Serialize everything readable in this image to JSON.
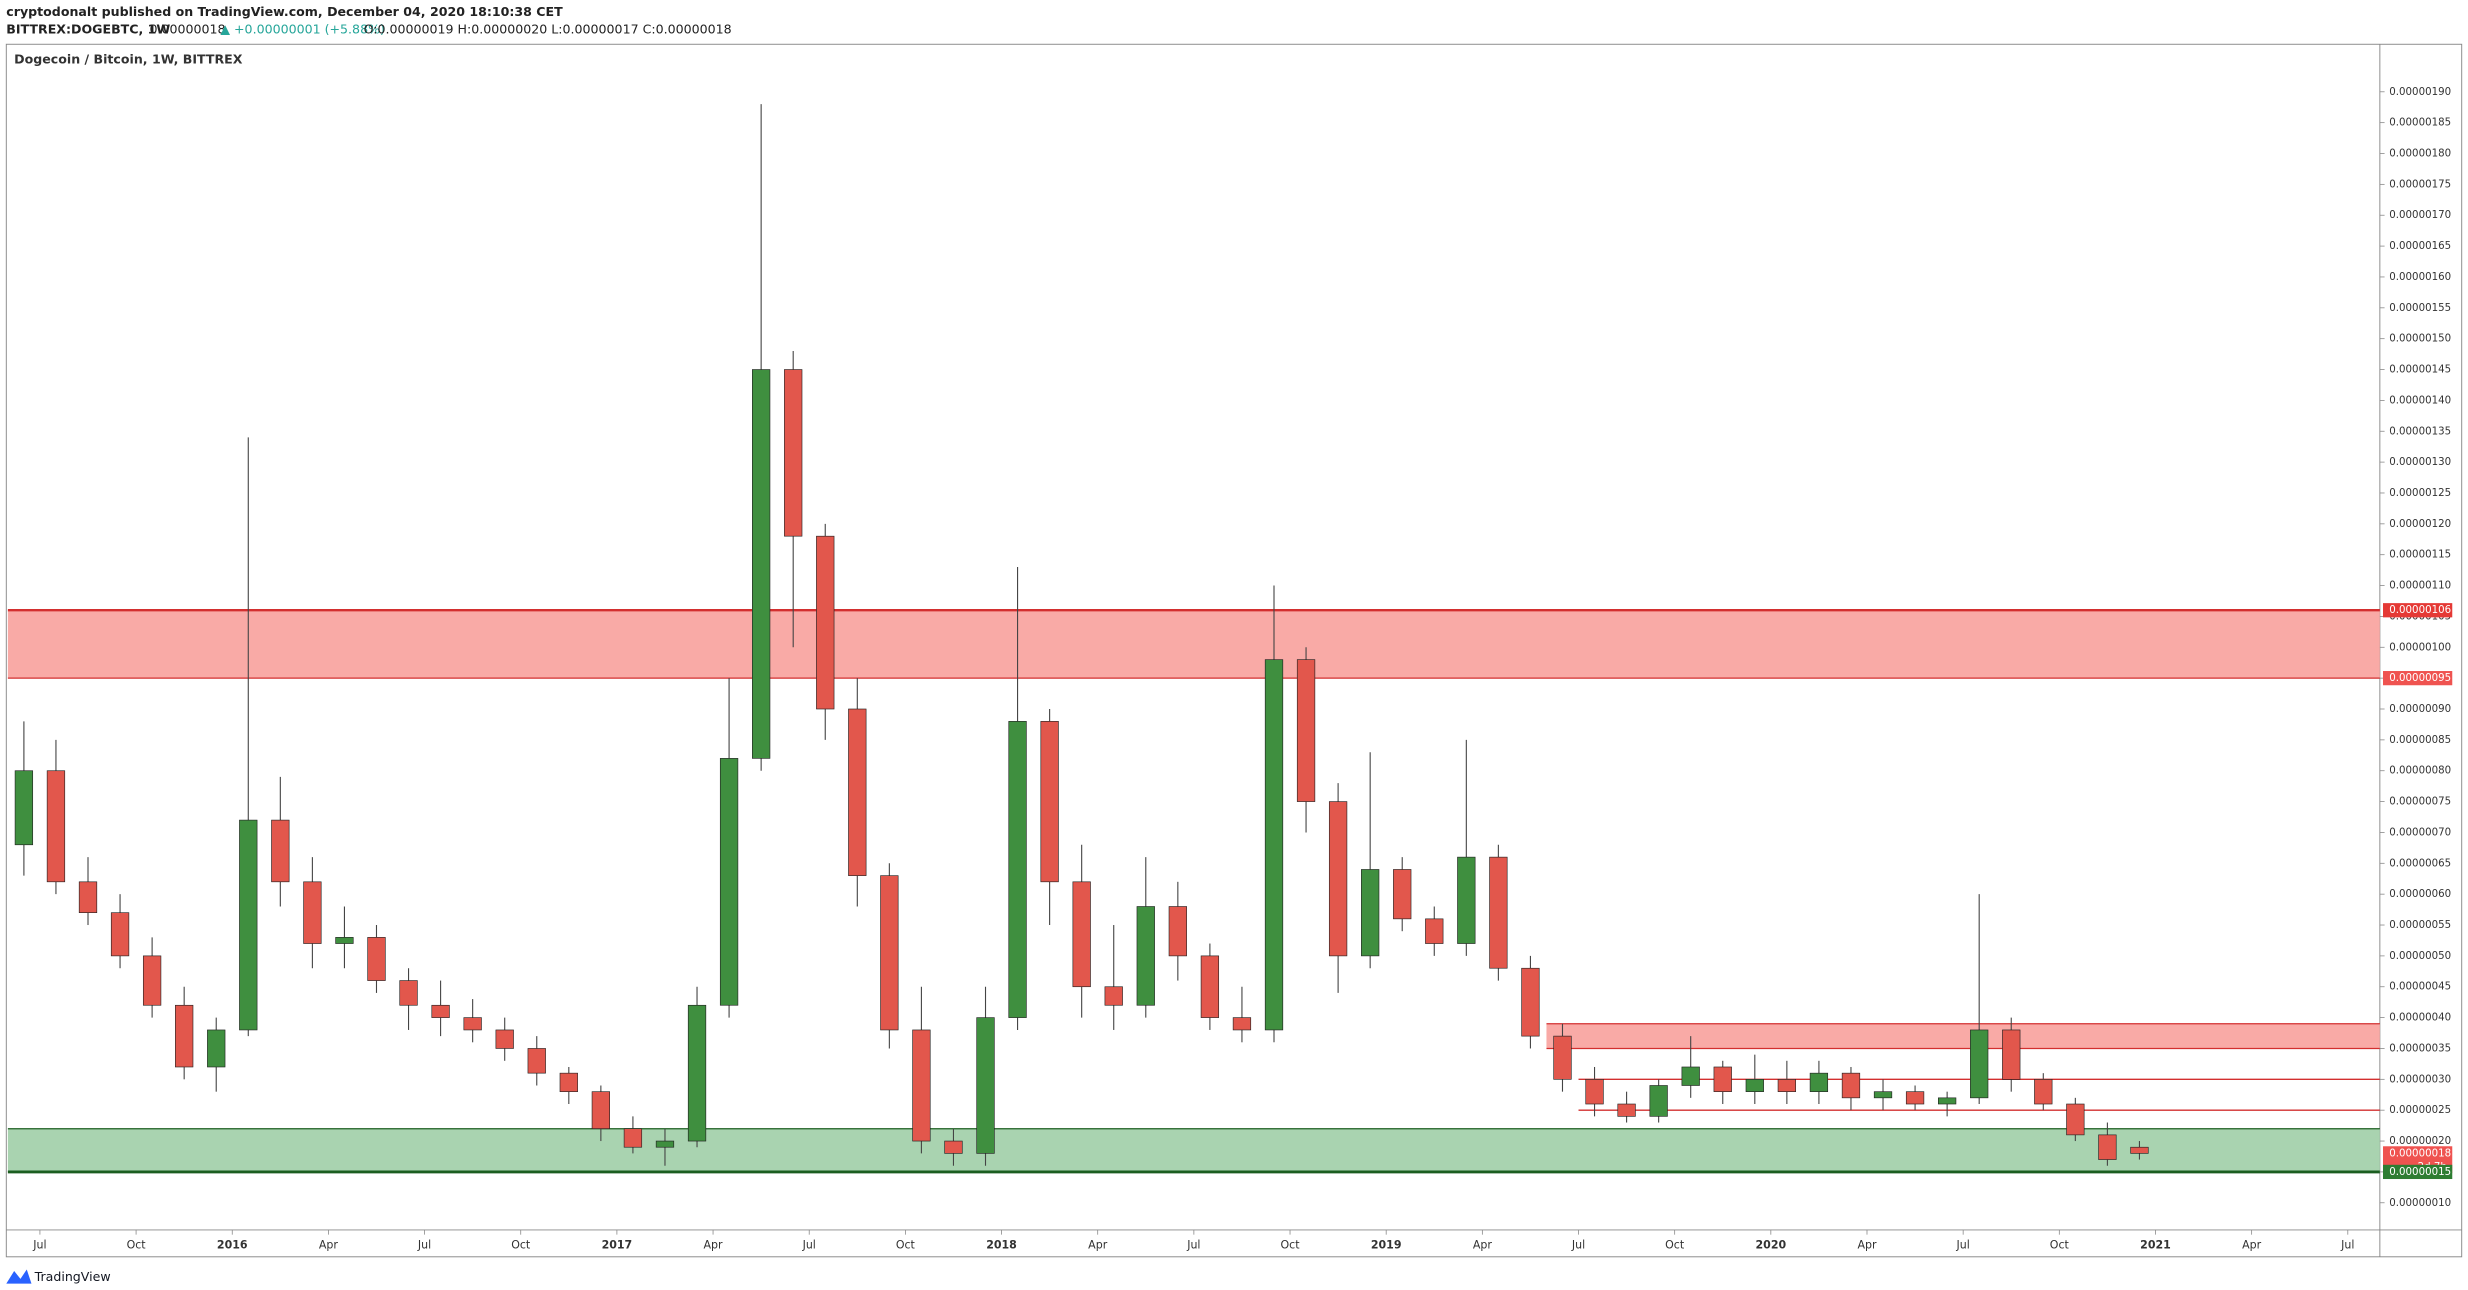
{
  "header": {
    "publisher": "cryptodonalt published on TradingView.com, December 04, 2020 18:10:38 CET",
    "symbol": "BITTREX:DOGEBTC, 1W",
    "last": "0.00000018",
    "change": "▲ +0.00000001 (+5.88%)",
    "ohlc": "O:0.00000019 H:0.00000020 L:0.00000017 C:0.00000018"
  },
  "footer": {
    "brand": "TradingView"
  },
  "chart_data": {
    "type": "candlestick",
    "title": "Dogecoin / Bitcoin, 1W, BITTREX",
    "x": [
      "2015-06",
      "2015-07",
      "2015-08",
      "2015-09",
      "2015-10",
      "2015-11",
      "2015-12",
      "2016-01",
      "2016-02",
      "2016-03",
      "2016-04",
      "2016-05",
      "2016-06",
      "2016-07",
      "2016-08",
      "2016-09",
      "2016-10",
      "2016-11",
      "2016-12",
      "2017-01",
      "2017-02",
      "2017-03",
      "2017-04",
      "2017-05",
      "2017-06",
      "2017-07",
      "2017-08",
      "2017-09",
      "2017-10",
      "2017-11",
      "2017-12",
      "2018-01",
      "2018-02",
      "2018-03",
      "2018-04",
      "2018-05",
      "2018-06",
      "2018-07",
      "2018-08",
      "2018-09",
      "2018-10",
      "2018-11",
      "2018-12",
      "2019-01",
      "2019-02",
      "2019-03",
      "2019-04",
      "2019-05",
      "2019-06",
      "2019-07",
      "2019-08",
      "2019-09",
      "2019-10",
      "2019-11",
      "2019-12",
      "2020-01",
      "2020-02",
      "2020-03",
      "2020-04",
      "2020-05",
      "2020-06",
      "2020-07",
      "2020-08",
      "2020-09",
      "2020-10",
      "2020-11",
      "2020-12"
    ],
    "open": [
      6.8e-07,
      8e-07,
      6.2e-07,
      5.7e-07,
      5e-07,
      4.2e-07,
      3.2e-07,
      3.8e-07,
      7.2e-07,
      6.2e-07,
      5.2e-07,
      5.3e-07,
      4.6e-07,
      4.2e-07,
      4e-07,
      3.8e-07,
      3.5e-07,
      3.1e-07,
      2.8e-07,
      2.2e-07,
      1.9e-07,
      2e-07,
      4.2e-07,
      8.2e-07,
      1.45e-06,
      1.18e-06,
      9e-07,
      6.3e-07,
      3.8e-07,
      2e-07,
      1.8e-07,
      4e-07,
      8.8e-07,
      6.2e-07,
      4.5e-07,
      4.2e-07,
      5.8e-07,
      5e-07,
      4e-07,
      3.8e-07,
      9.8e-07,
      7.5e-07,
      5e-07,
      6.4e-07,
      5.6e-07,
      5.2e-07,
      6.6e-07,
      4.8e-07,
      3.7e-07,
      3e-07,
      2.6e-07,
      2.4e-07,
      2.9e-07,
      3.2e-07,
      2.8e-07,
      3e-07,
      2.8e-07,
      3.1e-07,
      2.7e-07,
      2.8e-07,
      2.6e-07,
      2.7e-07,
      3.8e-07,
      3e-07,
      2.6e-07,
      2.1e-07,
      1.9e-07
    ],
    "high": [
      8.8e-07,
      8.5e-07,
      6.6e-07,
      6e-07,
      5.3e-07,
      4.5e-07,
      4e-07,
      1.34e-06,
      7.9e-07,
      6.6e-07,
      5.8e-07,
      5.5e-07,
      4.8e-07,
      4.6e-07,
      4.3e-07,
      4e-07,
      3.7e-07,
      3.2e-07,
      2.9e-07,
      2.4e-07,
      2.2e-07,
      4.5e-07,
      9.5e-07,
      1.88e-06,
      1.48e-06,
      1.2e-06,
      9.5e-07,
      6.5e-07,
      4.5e-07,
      2.2e-07,
      4.5e-07,
      1.13e-06,
      9e-07,
      6.8e-07,
      5.5e-07,
      6.6e-07,
      6.2e-07,
      5.2e-07,
      4.5e-07,
      1.1e-06,
      1e-06,
      7.8e-07,
      8.3e-07,
      6.6e-07,
      5.8e-07,
      8.5e-07,
      6.8e-07,
      5e-07,
      3.9e-07,
      3.2e-07,
      2.8e-07,
      3e-07,
      3.7e-07,
      3.3e-07,
      3.4e-07,
      3.3e-07,
      3.3e-07,
      3.2e-07,
      3e-07,
      2.9e-07,
      2.8e-07,
      6e-07,
      4e-07,
      3.1e-07,
      2.7e-07,
      2.3e-07,
      2e-07
    ],
    "low": [
      6.3e-07,
      6e-07,
      5.5e-07,
      4.8e-07,
      4e-07,
      3e-07,
      2.8e-07,
      3.7e-07,
      5.8e-07,
      4.8e-07,
      4.8e-07,
      4.4e-07,
      3.8e-07,
      3.7e-07,
      3.6e-07,
      3.3e-07,
      2.9e-07,
      2.6e-07,
      2e-07,
      1.8e-07,
      1.6e-07,
      1.9e-07,
      4e-07,
      8e-07,
      1e-06,
      8.5e-07,
      5.8e-07,
      3.5e-07,
      1.8e-07,
      1.6e-07,
      1.6e-07,
      3.8e-07,
      5.5e-07,
      4e-07,
      3.8e-07,
      4e-07,
      4.6e-07,
      3.8e-07,
      3.6e-07,
      3.6e-07,
      7e-07,
      4.4e-07,
      4.8e-07,
      5.4e-07,
      5e-07,
      5e-07,
      4.6e-07,
      3.5e-07,
      2.8e-07,
      2.4e-07,
      2.3e-07,
      2.3e-07,
      2.7e-07,
      2.6e-07,
      2.6e-07,
      2.6e-07,
      2.6e-07,
      2.5e-07,
      2.5e-07,
      2.5e-07,
      2.4e-07,
      2.6e-07,
      2.8e-07,
      2.5e-07,
      2e-07,
      1.6e-07,
      1.7e-07
    ],
    "close": [
      8e-07,
      6.2e-07,
      5.7e-07,
      5e-07,
      4.2e-07,
      3.2e-07,
      3.8e-07,
      7.2e-07,
      6.2e-07,
      5.2e-07,
      5.3e-07,
      4.6e-07,
      4.2e-07,
      4e-07,
      3.8e-07,
      3.5e-07,
      3.1e-07,
      2.8e-07,
      2.2e-07,
      1.9e-07,
      2e-07,
      4.2e-07,
      8.2e-07,
      1.45e-06,
      1.18e-06,
      9e-07,
      6.3e-07,
      3.8e-07,
      2e-07,
      1.8e-07,
      4e-07,
      8.8e-07,
      6.2e-07,
      4.5e-07,
      4.2e-07,
      5.8e-07,
      5e-07,
      4e-07,
      3.8e-07,
      9.8e-07,
      7.5e-07,
      5e-07,
      6.4e-07,
      5.6e-07,
      5.2e-07,
      6.6e-07,
      4.8e-07,
      3.7e-07,
      3e-07,
      2.6e-07,
      2.4e-07,
      2.9e-07,
      3.2e-07,
      2.8e-07,
      3e-07,
      2.8e-07,
      3.1e-07,
      2.7e-07,
      2.8e-07,
      2.6e-07,
      2.7e-07,
      3.8e-07,
      3e-07,
      2.6e-07,
      2.1e-07,
      1.7e-07,
      1.8e-07
    ],
    "up_color": "#3f8f3f",
    "down_color": "#e2574c",
    "xlim": [
      "2015-06",
      "2021-08"
    ],
    "xticks": [
      {
        "value": "2015-07",
        "label": "Jul"
      },
      {
        "value": "2015-10",
        "label": "Oct"
      },
      {
        "value": "2016-01",
        "label": "2016"
      },
      {
        "value": "2016-04",
        "label": "Apr"
      },
      {
        "value": "2016-07",
        "label": "Jul"
      },
      {
        "value": "2016-10",
        "label": "Oct"
      },
      {
        "value": "2017-01",
        "label": "2017"
      },
      {
        "value": "2017-04",
        "label": "Apr"
      },
      {
        "value": "2017-07",
        "label": "Jul"
      },
      {
        "value": "2017-10",
        "label": "Oct"
      },
      {
        "value": "2018-01",
        "label": "2018"
      },
      {
        "value": "2018-04",
        "label": "Apr"
      },
      {
        "value": "2018-07",
        "label": "Jul"
      },
      {
        "value": "2018-10",
        "label": "Oct"
      },
      {
        "value": "2019-01",
        "label": "2019"
      },
      {
        "value": "2019-04",
        "label": "Apr"
      },
      {
        "value": "2019-07",
        "label": "Jul"
      },
      {
        "value": "2019-10",
        "label": "Oct"
      },
      {
        "value": "2020-01",
        "label": "2020"
      },
      {
        "value": "2020-04",
        "label": "Apr"
      },
      {
        "value": "2020-07",
        "label": "Jul"
      },
      {
        "value": "2020-10",
        "label": "Oct"
      },
      {
        "value": "2021-01",
        "label": "2021"
      },
      {
        "value": "2021-04",
        "label": "Apr"
      },
      {
        "value": "2021-07",
        "label": "Jul"
      }
    ],
    "ylim": [
      5.6e-08,
      1.977e-06
    ],
    "yticks": [
      {
        "value": 1e-07,
        "label": "0.00000010"
      },
      {
        "value": 1.5e-07,
        "label": "0.00000015"
      },
      {
        "value": 2e-07,
        "label": "0.00000020"
      },
      {
        "value": 2.5e-07,
        "label": "0.00000025"
      },
      {
        "value": 3e-07,
        "label": "0.00000030"
      },
      {
        "value": 3.5e-07,
        "label": "0.00000035"
      },
      {
        "value": 4e-07,
        "label": "0.00000040"
      },
      {
        "value": 4.5e-07,
        "label": "0.00000045"
      },
      {
        "value": 5e-07,
        "label": "0.00000050"
      },
      {
        "value": 5.5e-07,
        "label": "0.00000055"
      },
      {
        "value": 6e-07,
        "label": "0.00000060"
      },
      {
        "value": 6.5e-07,
        "label": "0.00000065"
      },
      {
        "value": 7e-07,
        "label": "0.00000070"
      },
      {
        "value": 7.5e-07,
        "label": "0.00000075"
      },
      {
        "value": 8e-07,
        "label": "0.00000080"
      },
      {
        "value": 8.5e-07,
        "label": "0.00000085"
      },
      {
        "value": 9e-07,
        "label": "0.00000090"
      },
      {
        "value": 9.5e-07,
        "label": "0.00000095"
      },
      {
        "value": 1e-06,
        "label": "0.00000100"
      },
      {
        "value": 1.05e-06,
        "label": "0.00000105"
      },
      {
        "value": 1.1e-06,
        "label": "0.00000110"
      },
      {
        "value": 1.15e-06,
        "label": "0.00000115"
      },
      {
        "value": 1.2e-06,
        "label": "0.00000120"
      },
      {
        "value": 1.25e-06,
        "label": "0.00000125"
      },
      {
        "value": 1.3e-06,
        "label": "0.00000130"
      },
      {
        "value": 1.35e-06,
        "label": "0.00000135"
      },
      {
        "value": 1.4e-06,
        "label": "0.00000140"
      },
      {
        "value": 1.45e-06,
        "label": "0.00000145"
      },
      {
        "value": 1.5e-06,
        "label": "0.00000150"
      },
      {
        "value": 1.55e-06,
        "label": "0.00000155"
      },
      {
        "value": 1.6e-06,
        "label": "0.00000160"
      },
      {
        "value": 1.65e-06,
        "label": "0.00000165"
      },
      {
        "value": 1.7e-06,
        "label": "0.00000170"
      },
      {
        "value": 1.75e-06,
        "label": "0.00000175"
      },
      {
        "value": 1.8e-06,
        "label": "0.00000180"
      },
      {
        "value": 1.85e-06,
        "label": "0.00000185"
      },
      {
        "value": 1.9e-06,
        "label": "0.00000190"
      }
    ],
    "zones": [
      {
        "from": 9.5e-07,
        "to": 1.06e-06,
        "color": "#f9aaa6",
        "edge": "#d32f2f"
      },
      {
        "from": 1.5e-07,
        "to": 2.2e-07,
        "color": "#a9d3b0",
        "edge": "#1b5e20"
      },
      {
        "from": 3.5e-07,
        "to": 3.9e-07,
        "start": "2019-06",
        "color": "#f9aaa6",
        "edge": "#d32f2f"
      }
    ],
    "lines": [
      {
        "value": 3e-07,
        "start": "2019-07",
        "color": "#d32f2f"
      },
      {
        "value": 2.5e-07,
        "start": "2019-07",
        "color": "#d32f2f"
      }
    ],
    "price_labels": [
      {
        "value": 1.06e-06,
        "label": "0.00000106",
        "color": "#e53935"
      },
      {
        "value": 9.5e-07,
        "label": "0.00000095",
        "color": "#ef5350"
      },
      {
        "value": 1.8e-07,
        "label": "0.00000018",
        "color": "#ef5350"
      },
      {
        "value": 1.5e-07,
        "label": "0.00000015",
        "color": "#2e7d32"
      }
    ],
    "countdown": "2d 7h"
  }
}
